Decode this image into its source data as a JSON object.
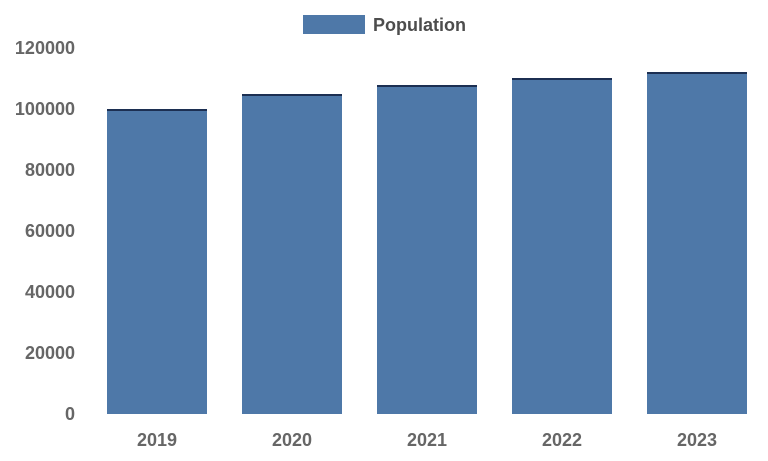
{
  "chart_data": {
    "type": "bar",
    "title": "",
    "legend_label": "Population",
    "legend_position": "top-center",
    "categories": [
      "2019",
      "2020",
      "2021",
      "2022",
      "2023"
    ],
    "series": [
      {
        "name": "Population",
        "values": [
          100000,
          105000,
          108000,
          110000,
          112000
        ]
      }
    ],
    "xlabel": "",
    "ylabel": "",
    "ylim": [
      0,
      120000
    ],
    "ytick_values": [
      0,
      20000,
      40000,
      60000,
      80000,
      100000,
      120000
    ],
    "ytick_labels": [
      "0",
      "20000",
      "40000",
      "60000",
      "80000",
      "100000",
      "120000"
    ],
    "grid": false,
    "axis_lines": false,
    "colors": {
      "bar_fill": "#4e78a8",
      "bar_top_edge": "#1c2f52",
      "axis_text": "#666666",
      "legend_text": "#4d4d4d",
      "background": "#ffffff"
    }
  }
}
